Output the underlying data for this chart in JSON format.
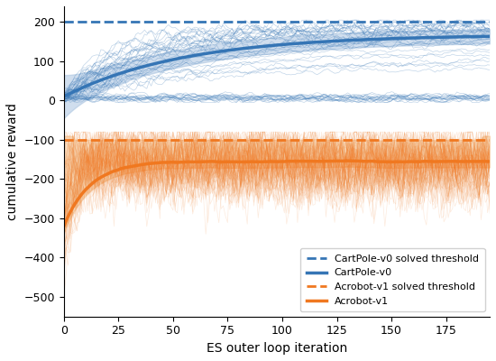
{
  "xlabel": "ES outer loop iteration",
  "ylabel": "cumulative reward",
  "xlim": [
    0,
    195
  ],
  "ylim": [
    -550,
    240
  ],
  "cartpole_threshold": 200,
  "acrobot_threshold": -100,
  "cartpole_color": "#3575b5",
  "cartpole_light_color": "#aac4e0",
  "acrobot_color": "#f07820",
  "acrobot_light_color": "#f5c89a",
  "n_iterations": 195,
  "n_cartpole_traces": 50,
  "n_acrobot_traces": 80,
  "cartpole_start_mean": 10,
  "cartpole_end_mean": 168,
  "acrobot_settle_mean": -155,
  "legend_labels": [
    "CartPole-v0 solved threshold",
    "CartPole-v0",
    "Acrobot-v1 solved threshold",
    "Acrobot-v1"
  ],
  "xticks": [
    0,
    25,
    50,
    75,
    100,
    125,
    150,
    175
  ],
  "yticks": [
    200,
    100,
    0,
    -100,
    -200,
    -300,
    -400,
    -500
  ],
  "figsize": [
    5.5,
    4.0
  ],
  "dpi": 100
}
